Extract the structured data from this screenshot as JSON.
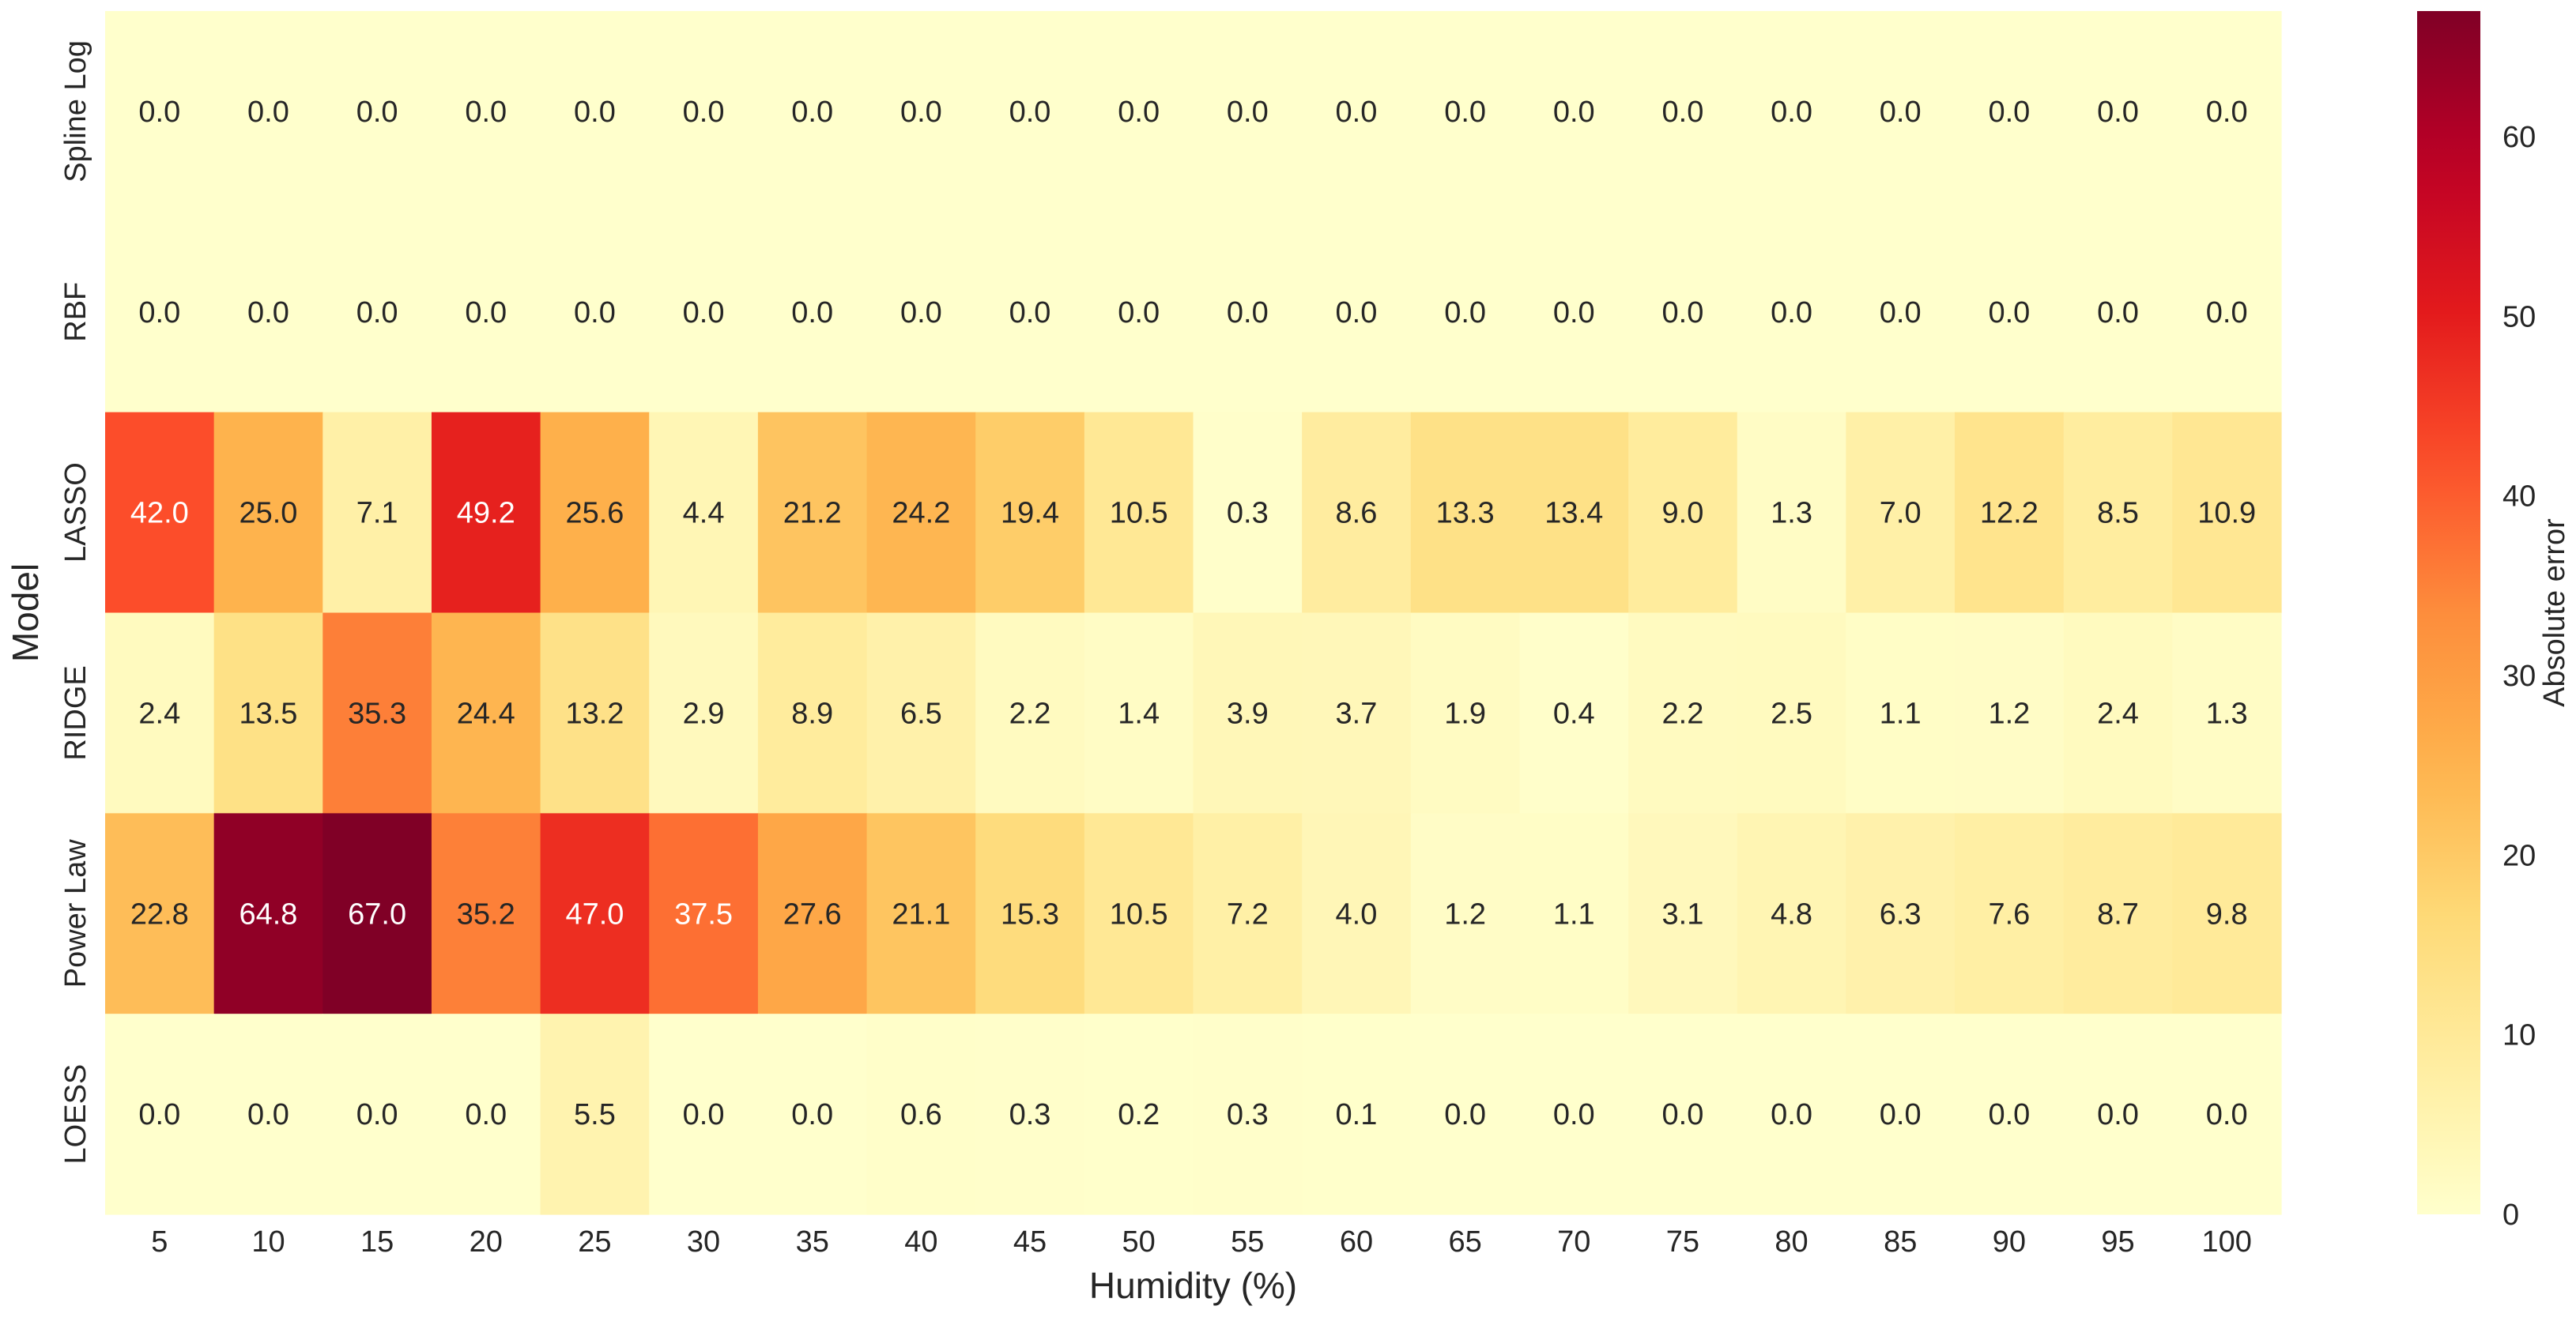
{
  "chart_data": {
    "type": "heatmap",
    "xlabel": "Humidity (%)",
    "ylabel": "Model",
    "colorbar_label": "Absolute error",
    "colormap": "YlOrRd",
    "vmin": 0,
    "vmax": 67,
    "colorbar_ticks": [
      0,
      10,
      20,
      30,
      40,
      50,
      60
    ],
    "x_categories": [
      "5",
      "10",
      "15",
      "20",
      "25",
      "30",
      "35",
      "40",
      "45",
      "50",
      "55",
      "60",
      "65",
      "70",
      "75",
      "80",
      "85",
      "90",
      "95",
      "100"
    ],
    "y_categories": [
      "Spline Log",
      "RBF",
      "LASSO",
      "RIDGE",
      "Power Law",
      "LOESS"
    ],
    "values": [
      [
        0.0,
        0.0,
        0.0,
        0.0,
        0.0,
        0.0,
        0.0,
        0.0,
        0.0,
        0.0,
        0.0,
        0.0,
        0.0,
        0.0,
        0.0,
        0.0,
        0.0,
        0.0,
        0.0,
        0.0
      ],
      [
        0.0,
        0.0,
        0.0,
        0.0,
        0.0,
        0.0,
        0.0,
        0.0,
        0.0,
        0.0,
        0.0,
        0.0,
        0.0,
        0.0,
        0.0,
        0.0,
        0.0,
        0.0,
        0.0,
        0.0
      ],
      [
        42.0,
        25.0,
        7.1,
        49.2,
        25.6,
        4.4,
        21.2,
        24.2,
        19.4,
        10.5,
        0.3,
        8.6,
        13.3,
        13.4,
        9.0,
        1.3,
        7.0,
        12.2,
        8.5,
        10.9
      ],
      [
        2.4,
        13.5,
        35.3,
        24.4,
        13.2,
        2.9,
        8.9,
        6.5,
        2.2,
        1.4,
        3.9,
        3.7,
        1.9,
        0.4,
        2.2,
        2.5,
        1.1,
        1.2,
        2.4,
        1.3
      ],
      [
        22.8,
        64.8,
        67.0,
        35.2,
        47.0,
        37.5,
        27.6,
        21.1,
        15.3,
        10.5,
        7.2,
        4.0,
        1.2,
        1.1,
        3.1,
        4.8,
        6.3,
        7.6,
        8.7,
        9.8
      ],
      [
        0.0,
        0.0,
        0.0,
        0.0,
        5.5,
        0.0,
        0.0,
        0.6,
        0.3,
        0.2,
        0.3,
        0.1,
        0.0,
        0.0,
        0.0,
        0.0,
        0.0,
        0.0,
        0.0,
        0.0
      ]
    ],
    "value_format": "0.1f"
  }
}
